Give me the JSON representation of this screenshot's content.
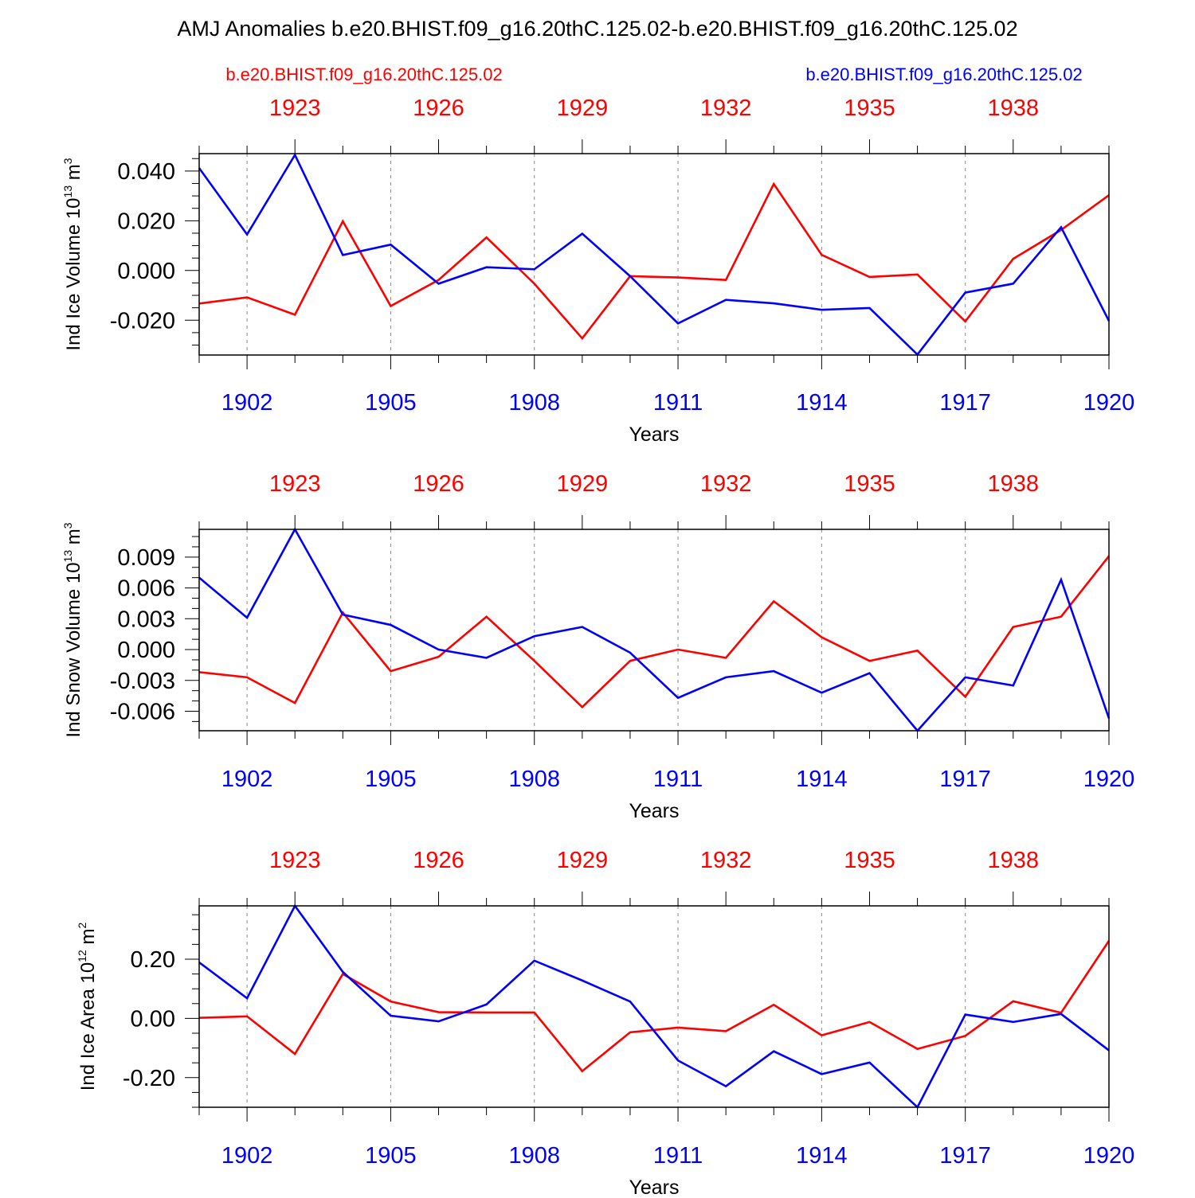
{
  "title": "AMJ Anomalies b.e20.BHIST.f09_g16.20thC.125.02-b.e20.BHIST.f09_g16.20thC.125.02",
  "legend": {
    "red_label": "b.e20.BHIST.f09_g16.20thC.125.02",
    "blue_label": "b.e20.BHIST.f09_g16.20thC.125.02"
  },
  "colors": {
    "series_a": "#ff0000",
    "series_b": "#0000ff",
    "axis": "#000000",
    "grid": "#888888"
  },
  "chart_data": [
    {
      "type": "line",
      "ylabel_main": "Ind Ice Volume 10",
      "ylabel_exp": "13",
      "ylabel_unit": " m",
      "ylabel_unit_exp": "3",
      "xlabel": "Years",
      "ylim": [
        -0.034,
        0.047
      ],
      "yticks": [
        -0.02,
        0.0,
        0.02,
        0.04
      ],
      "ytick_labels": [
        "-0.020",
        "0.000",
        "0.020",
        "0.040"
      ],
      "minor_step": 0.005,
      "bottom_axis": {
        "x": [
          1901,
          1902,
          1903,
          1904,
          1905,
          1906,
          1907,
          1908,
          1909,
          1910,
          1911,
          1912,
          1913,
          1914,
          1915,
          1916,
          1917,
          1918,
          1919,
          1920
        ],
        "ticks": [
          1902,
          1905,
          1908,
          1911,
          1914,
          1917,
          1920
        ],
        "tick_labels": [
          "1902",
          "1905",
          "1908",
          "1911",
          "1914",
          "1917",
          "1920"
        ]
      },
      "top_axis": {
        "ticks": [
          1923,
          1926,
          1929,
          1932,
          1935,
          1938
        ],
        "tick_labels": [
          "1923",
          "1926",
          "1929",
          "1932",
          "1935",
          "1938"
        ],
        "offset": 20
      },
      "series": [
        {
          "name": "b.e20.BHIST.f09_g16.20thC.125.02 (red, years 1921-1940)",
          "color": "#ff0000",
          "values": [
            -0.0133,
            -0.0108,
            -0.0178,
            0.0198,
            -0.0143,
            -0.0038,
            0.0133,
            -0.0053,
            -0.0273,
            -0.0023,
            -0.0028,
            -0.0038,
            0.0348,
            0.0063,
            -0.0026,
            -0.0016,
            -0.0205,
            0.0047,
            0.0163,
            0.0303
          ]
        },
        {
          "name": "b.e20.BHIST.f09_g16.20thC.125.02 (blue, years 1901-1920)",
          "color": "#0000ff",
          "values": [
            0.0412,
            0.0145,
            0.0465,
            0.0062,
            0.0104,
            -0.0053,
            0.0013,
            0.0005,
            0.0148,
            -0.0023,
            -0.0213,
            -0.0118,
            -0.0132,
            -0.0158,
            -0.0151,
            -0.0338,
            -0.0089,
            -0.0053,
            0.0174,
            -0.0203
          ]
        }
      ]
    },
    {
      "type": "line",
      "ylabel_main": "Ind Snow Volume 10",
      "ylabel_exp": "13",
      "ylabel_unit": " m",
      "ylabel_unit_exp": "3",
      "xlabel": "Years",
      "ylim": [
        -0.0079,
        0.0117
      ],
      "yticks": [
        -0.006,
        -0.003,
        0.0,
        0.003,
        0.006,
        0.009
      ],
      "ytick_labels": [
        "-0.006",
        "-0.003",
        "0.000",
        "0.003",
        "0.006",
        "0.009"
      ],
      "minor_step": 0.001,
      "bottom_axis": {
        "x": [
          1901,
          1902,
          1903,
          1904,
          1905,
          1906,
          1907,
          1908,
          1909,
          1910,
          1911,
          1912,
          1913,
          1914,
          1915,
          1916,
          1917,
          1918,
          1919,
          1920
        ],
        "ticks": [
          1902,
          1905,
          1908,
          1911,
          1914,
          1917,
          1920
        ],
        "tick_labels": [
          "1902",
          "1905",
          "1908",
          "1911",
          "1914",
          "1917",
          "1920"
        ]
      },
      "top_axis": {
        "ticks": [
          1923,
          1926,
          1929,
          1932,
          1935,
          1938
        ],
        "tick_labels": [
          "1923",
          "1926",
          "1929",
          "1932",
          "1935",
          "1938"
        ],
        "offset": 20
      },
      "series": [
        {
          "name": "b.e20.BHIST.f09_g16.20thC.125.02 (red, years 1921-1940)",
          "color": "#ff0000",
          "values": [
            -0.0022,
            -0.0027,
            -0.0052,
            0.0036,
            -0.0021,
            -0.0007,
            0.0032,
            -0.0011,
            -0.0056,
            -0.0011,
            0.0,
            -0.0008,
            0.0047,
            0.0012,
            -0.0011,
            -0.0001,
            -0.0046,
            0.0022,
            0.0032,
            0.0091
          ]
        },
        {
          "name": "b.e20.BHIST.f09_g16.20thC.125.02 (blue, years 1901-1920)",
          "color": "#0000ff",
          "values": [
            0.007,
            0.0031,
            0.0117,
            0.0034,
            0.0024,
            0.0,
            -0.0008,
            0.0013,
            0.0022,
            -0.0003,
            -0.0047,
            -0.0027,
            -0.0021,
            -0.0042,
            -0.0023,
            -0.0079,
            -0.0027,
            -0.0035,
            0.0068,
            -0.0067
          ]
        }
      ]
    },
    {
      "type": "line",
      "ylabel_main": "Ind Ice Area 10",
      "ylabel_exp": "12",
      "ylabel_unit": " m",
      "ylabel_unit_exp": "2",
      "xlabel": "Years",
      "ylim": [
        -0.3,
        0.38
      ],
      "yticks": [
        -0.2,
        0.0,
        0.2
      ],
      "ytick_labels": [
        "-0.20",
        "0.00",
        "0.20"
      ],
      "minor_step": 0.05,
      "bottom_axis": {
        "x": [
          1901,
          1902,
          1903,
          1904,
          1905,
          1906,
          1907,
          1908,
          1909,
          1910,
          1911,
          1912,
          1913,
          1914,
          1915,
          1916,
          1917,
          1918,
          1919,
          1920
        ],
        "ticks": [
          1902,
          1905,
          1908,
          1911,
          1914,
          1917,
          1920
        ],
        "tick_labels": [
          "1902",
          "1905",
          "1908",
          "1911",
          "1914",
          "1917",
          "1920"
        ]
      },
      "top_axis": {
        "ticks": [
          1923,
          1926,
          1929,
          1932,
          1935,
          1938
        ],
        "tick_labels": [
          "1923",
          "1926",
          "1929",
          "1932",
          "1935",
          "1938"
        ],
        "offset": 20
      },
      "series": [
        {
          "name": "b.e20.BHIST.f09_g16.20thC.125.02 (red, years 1921-1940)",
          "color": "#ff0000",
          "values": [
            0.002,
            0.007,
            -0.12,
            0.15,
            0.057,
            0.021,
            0.02,
            0.02,
            -0.178,
            -0.047,
            -0.031,
            -0.043,
            0.046,
            -0.057,
            -0.012,
            -0.103,
            -0.059,
            0.058,
            0.019,
            0.262
          ]
        },
        {
          "name": "b.e20.BHIST.f09_g16.20thC.125.02 (blue, years 1901-1920)",
          "color": "#0000ff",
          "values": [
            0.189,
            0.068,
            0.38,
            0.157,
            0.009,
            -0.01,
            0.047,
            0.195,
            0.128,
            0.057,
            -0.142,
            -0.229,
            -0.111,
            -0.188,
            -0.149,
            -0.3,
            0.013,
            -0.012,
            0.015,
            -0.108
          ]
        }
      ]
    }
  ]
}
